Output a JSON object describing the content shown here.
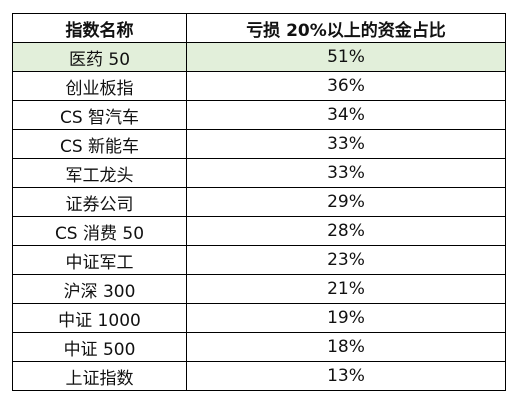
{
  "table": {
    "header": {
      "name": "指数名称",
      "value": "亏损 20%以上的资金占比"
    },
    "highlight_color": "#e2efda",
    "rows": [
      {
        "name": "医药 50",
        "value": "51%"
      },
      {
        "name": "创业板指",
        "value": "36%"
      },
      {
        "name": "CS 智汽车",
        "value": "34%"
      },
      {
        "name": "CS 新能车",
        "value": "33%"
      },
      {
        "name": "军工龙头",
        "value": "33%"
      },
      {
        "name": "证券公司",
        "value": "29%"
      },
      {
        "name": "CS 消费 50",
        "value": "28%"
      },
      {
        "name": "中证军工",
        "value": "23%"
      },
      {
        "name": "沪深 300",
        "value": "21%"
      },
      {
        "name": "中证 1000",
        "value": "19%"
      },
      {
        "name": "中证 500",
        "value": "18%"
      },
      {
        "name": "上证指数",
        "value": "13%"
      }
    ]
  }
}
